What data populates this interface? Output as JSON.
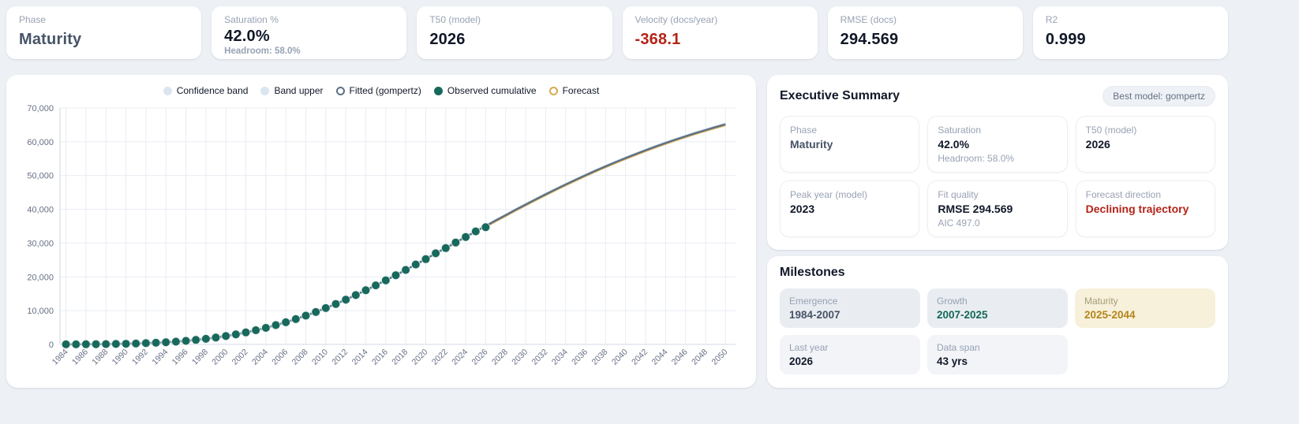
{
  "colors": {
    "observed": "#17695b",
    "fitted": "#5b7186",
    "forecast": "#d9a94f",
    "band": "#dbe5ef",
    "negative": "#b42318",
    "maturity_accent": "#b3861a",
    "growth_accent": "#13685a",
    "slate_accent": "#475467"
  },
  "kpis": [
    {
      "label": "Phase",
      "value": "Maturity"
    },
    {
      "label": "Saturation %",
      "value": "42.0%",
      "sub": "Headroom: 58.0%"
    },
    {
      "label": "T50 (model)",
      "value": "2026"
    },
    {
      "label": "Velocity (docs/year)",
      "value": "-368.1"
    },
    {
      "label": "RMSE (docs)",
      "value": "294.569"
    },
    {
      "label": "R2",
      "value": "0.999"
    }
  ],
  "executive_summary": {
    "title": "Executive Summary",
    "badge": "Best model: gompertz",
    "cards": [
      {
        "label": "Phase",
        "value": "Maturity"
      },
      {
        "label": "Saturation",
        "value": "42.0%",
        "sub": "Headroom: 58.0%"
      },
      {
        "label": "T50 (model)",
        "value": "2026"
      },
      {
        "label": "Peak year (model)",
        "value": "2023"
      },
      {
        "label": "Fit quality",
        "value": "RMSE 294.569",
        "sub": "AIC 497.0"
      },
      {
        "label": "Forecast direction",
        "value": "Declining trajectory"
      }
    ]
  },
  "milestones": {
    "title": "Milestones",
    "cards": [
      {
        "label": "Emergence",
        "value": "1984-2007"
      },
      {
        "label": "Growth",
        "value": "2007-2025"
      },
      {
        "label": "Maturity",
        "value": "2025-2044"
      },
      {
        "label": "Last year",
        "value": "2026"
      },
      {
        "label": "Data span",
        "value": "43 yrs"
      }
    ]
  },
  "chart_data": {
    "type": "line",
    "title": "",
    "xlabel": "",
    "ylabel": "",
    "ylim": [
      0,
      70000
    ],
    "y_ticks": [
      0,
      10000,
      20000,
      30000,
      40000,
      50000,
      60000,
      70000
    ],
    "x_ticks": [
      1984,
      1986,
      1988,
      1990,
      1992,
      1994,
      1996,
      1998,
      2000,
      2002,
      2004,
      2006,
      2008,
      2010,
      2012,
      2014,
      2016,
      2018,
      2020,
      2022,
      2024,
      2026,
      2028,
      2030,
      2032,
      2034,
      2036,
      2038,
      2040,
      2042,
      2044,
      2046,
      2048,
      2050
    ],
    "grid": true,
    "legend_position": "top",
    "legend": [
      {
        "label": "Confidence band",
        "fill": "#dbe5ef",
        "stroke": "#dbe5ef"
      },
      {
        "label": "Band upper",
        "fill": "#dbe5ef",
        "stroke": "#dbe5ef"
      },
      {
        "label": "Fitted (gompertz)",
        "fill": "#ffffff",
        "stroke": "#5b7186"
      },
      {
        "label": "Observed cumulative",
        "fill": "#17695b",
        "stroke": "#17695b"
      },
      {
        "label": "Forecast",
        "fill": "#ffffff",
        "stroke": "#d9a94f"
      }
    ],
    "series": [
      {
        "name": "Fitted (gompertz)",
        "type": "line",
        "color": "#5b7186",
        "x_start": 1984,
        "band_half_width": 550,
        "values": [
          19,
          29,
          45,
          67,
          97,
          139,
          195,
          268,
          364,
          485,
          637,
          824,
          1052,
          1326,
          1650,
          2028,
          2468,
          2974,
          3549,
          4193,
          4903,
          5719,
          6553,
          7499,
          8511,
          9594,
          10760,
          11980,
          13265,
          14612,
          16023,
          17466,
          18963,
          20492,
          22049,
          23649,
          25254,
          26962,
          28521,
          30168,
          31807,
          33456,
          35071,
          36697,
          38294,
          39871,
          41428,
          42952,
          44453,
          45920,
          47347,
          48749,
          50119,
          51439,
          52735,
          53981,
          55194,
          56359,
          57498,
          58589,
          59639,
          60656,
          61631,
          62574,
          63476,
          64345,
          65179
        ]
      },
      {
        "name": "Forecast",
        "type": "line",
        "color": "#d9a94f",
        "x_start": 2026,
        "values": [
          35071,
          36697,
          38294,
          39871,
          41428,
          42952,
          44453,
          45920,
          47347,
          48749,
          50119,
          51439,
          52735,
          53981,
          55194,
          56359,
          57498,
          58589,
          59639,
          60656,
          61631,
          62574,
          63476,
          64345,
          65179
        ]
      },
      {
        "name": "Observed cumulative",
        "type": "scatter",
        "color": "#17695b",
        "x_start": 1984,
        "values": [
          19,
          29,
          45,
          67,
          97,
          139,
          195,
          268,
          364,
          485,
          637,
          824,
          1052,
          1326,
          1650,
          2028,
          2468,
          2974,
          3549,
          4193,
          4903,
          5719,
          6553,
          7499,
          8511,
          9594,
          10760,
          11980,
          13265,
          14612,
          16023,
          17466,
          18963,
          20492,
          22049,
          23649,
          25254,
          26962,
          28521,
          30168,
          31807,
          33456,
          34700
        ]
      }
    ]
  }
}
